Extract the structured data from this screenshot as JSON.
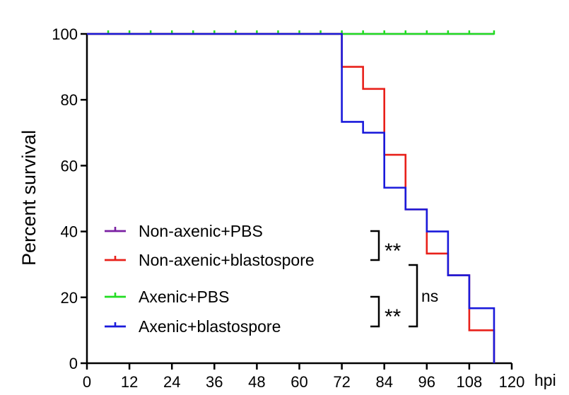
{
  "chart_data": {
    "type": "line",
    "step": true,
    "title": "",
    "xlabel": "hpi",
    "ylabel": "Percent survival",
    "xlim": [
      0,
      120
    ],
    "ylim": [
      0,
      100
    ],
    "xticks": [
      0,
      12,
      24,
      36,
      48,
      60,
      72,
      84,
      96,
      108,
      120
    ],
    "yticks": [
      0,
      20,
      40,
      60,
      80,
      100
    ],
    "grid": false,
    "legend": "bottom-left",
    "series": [
      {
        "name": "Non-axenic+PBS",
        "color": "#7a1fa2",
        "x": [
          0,
          115
        ],
        "y": [
          100,
          100
        ]
      },
      {
        "name": "Non-axenic+blastospore",
        "color": "#e8201a",
        "x": [
          0,
          72,
          78,
          84,
          90,
          96,
          102,
          108,
          115
        ],
        "y": [
          100,
          90,
          83.3,
          63.3,
          46.7,
          33.3,
          26.7,
          10,
          0
        ]
      },
      {
        "name": "Axenic+PBS",
        "color": "#22dd22",
        "x": [
          0,
          115
        ],
        "y": [
          100,
          100
        ],
        "censor_ticks": [
          6,
          12,
          18,
          24,
          30,
          36,
          42,
          48,
          54,
          60,
          66,
          72,
          78,
          84,
          90,
          96,
          102,
          108,
          115
        ]
      },
      {
        "name": "Axenic+blastospore",
        "color": "#1a1adb",
        "x": [
          0,
          72,
          78,
          84,
          90,
          96,
          102,
          108,
          115
        ],
        "y": [
          100,
          73.3,
          70,
          53.3,
          46.7,
          40,
          26.7,
          16.7,
          0
        ]
      }
    ],
    "annotations": [
      {
        "text": "**",
        "between": [
          "Non-axenic+PBS",
          "Non-axenic+blastospore"
        ]
      },
      {
        "text": "**",
        "between": [
          "Axenic+PBS",
          "Axenic+blastospore"
        ]
      },
      {
        "text": "ns",
        "between": [
          "Non-axenic+blastospore",
          "Axenic+blastospore"
        ]
      }
    ]
  }
}
